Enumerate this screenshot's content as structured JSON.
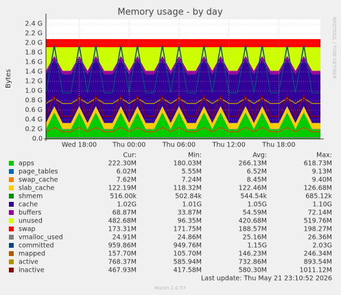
{
  "chart_data": {
    "type": "stacked_area",
    "title": "Memory usage - by day",
    "y_label": "Bytes",
    "side_text": "RRDTOOL / TOBI OETIKER",
    "footer": "Last update: Thu May 21 23:10:52 2026",
    "version": "Munin 2.0.57",
    "grid": true,
    "ylim": [
      0,
      2.5
    ],
    "yticks": [
      {
        "value": 0,
        "label": "0.0"
      },
      {
        "value": 0.2,
        "label": "0.2 G"
      },
      {
        "value": 0.4,
        "label": "0.4 G"
      },
      {
        "value": 0.6,
        "label": "0.6 G"
      },
      {
        "value": 0.8,
        "label": "0.8 G"
      },
      {
        "value": 1.0,
        "label": "1.0 G"
      },
      {
        "value": 1.2,
        "label": "1.2 G"
      },
      {
        "value": 1.4,
        "label": "1.4 G"
      },
      {
        "value": 1.6,
        "label": "1.6 G"
      },
      {
        "value": 1.8,
        "label": "1.8 G"
      },
      {
        "value": 2.0,
        "label": "2.0 G"
      },
      {
        "value": 2.2,
        "label": "2.2 G"
      },
      {
        "value": 2.4,
        "label": "2.4 G"
      }
    ],
    "categories": [
      null,
      null,
      null,
      null,
      "Wed 18:00",
      null,
      null,
      null,
      null,
      null,
      "Thu 00:00",
      null,
      null,
      null,
      null,
      null,
      "Thu 06:00",
      null,
      null,
      null,
      null,
      null,
      "Thu 12:00",
      null,
      null,
      null,
      null,
      null,
      "Thu 18:00",
      null,
      null,
      null,
      null,
      null
    ],
    "legend_headers": [
      "Cur:",
      "Min:",
      "Avg:",
      "Max:"
    ],
    "series": [
      {
        "name": "apps",
        "color": "#00cc00",
        "stack": true,
        "stats": [
          "222.30M",
          "180.03M",
          "266.13M",
          "618.73M"
        ],
        "values": [
          0.2,
          0.55,
          0.2,
          0.2,
          0.55,
          0.2,
          0.55,
          0.2,
          0.2,
          0.55,
          0.2,
          0.55,
          0.2,
          0.2,
          0.55,
          0.2,
          0.55,
          0.2,
          0.2,
          0.55,
          0.2,
          0.55,
          0.2,
          0.2,
          0.55,
          0.2,
          0.55,
          0.2,
          0.2,
          0.55,
          0.2,
          0.55,
          0.2,
          0.2
        ]
      },
      {
        "name": "page_tables",
        "color": "#0066b3",
        "stack": true,
        "stats": [
          "6.02M",
          "5.55M",
          "6.52M",
          "9.13M"
        ],
        "values": [
          0.006,
          0.006,
          0.006,
          0.006,
          0.006,
          0.006,
          0.006,
          0.006,
          0.006,
          0.006,
          0.006,
          0.006,
          0.006,
          0.006,
          0.006,
          0.006,
          0.006,
          0.006,
          0.006,
          0.006,
          0.006,
          0.006,
          0.006,
          0.006,
          0.006,
          0.006,
          0.006,
          0.006,
          0.006,
          0.006,
          0.006,
          0.006,
          0.006,
          0.006
        ]
      },
      {
        "name": "swap_cache",
        "color": "#ff8000",
        "stack": true,
        "stats": [
          "7.62M",
          "7.24M",
          "8.45M",
          "9.40M"
        ],
        "values": [
          0.007,
          0.007,
          0.007,
          0.007,
          0.007,
          0.007,
          0.007,
          0.007,
          0.007,
          0.007,
          0.007,
          0.007,
          0.007,
          0.007,
          0.007,
          0.007,
          0.007,
          0.007,
          0.007,
          0.007,
          0.007,
          0.007,
          0.007,
          0.007,
          0.007,
          0.007,
          0.007,
          0.007,
          0.007,
          0.007,
          0.007,
          0.007,
          0.007,
          0.007
        ]
      },
      {
        "name": "slab_cache",
        "color": "#ffcc00",
        "stack": true,
        "stats": [
          "122.19M",
          "118.32M",
          "122.46M",
          "126.68M"
        ],
        "values": [
          0.12,
          0.12,
          0.12,
          0.12,
          0.12,
          0.12,
          0.12,
          0.12,
          0.12,
          0.12,
          0.12,
          0.12,
          0.12,
          0.12,
          0.12,
          0.12,
          0.12,
          0.12,
          0.12,
          0.12,
          0.12,
          0.12,
          0.12,
          0.12,
          0.12,
          0.12,
          0.12,
          0.12,
          0.12,
          0.12,
          0.12,
          0.12,
          0.12,
          0.12
        ]
      },
      {
        "name": "shmem",
        "color": "#008f00",
        "stack": true,
        "stats": [
          "516.00k",
          "502.84k",
          "544.54k",
          "685.12k"
        ],
        "values": [
          0.0005,
          0.0005,
          0.0005,
          0.0005,
          0.0005,
          0.0005,
          0.0005,
          0.0005,
          0.0005,
          0.0005,
          0.0005,
          0.0005,
          0.0005,
          0.0005,
          0.0005,
          0.0005,
          0.0005,
          0.0005,
          0.0005,
          0.0005,
          0.0005,
          0.0005,
          0.0005,
          0.0005,
          0.0005,
          0.0005,
          0.0005,
          0.0005,
          0.0005,
          0.0005,
          0.0005,
          0.0005,
          0.0005,
          0.0005
        ]
      },
      {
        "name": "cache",
        "color": "#330099",
        "stack": true,
        "stats": [
          "1.02G",
          "1.01G",
          "1.05G",
          "1.10G"
        ],
        "values": [
          1.02,
          0.98,
          1.02,
          1.02,
          0.98,
          1.02,
          0.98,
          1.02,
          1.02,
          0.98,
          1.02,
          0.98,
          1.02,
          1.02,
          0.98,
          1.02,
          0.98,
          1.02,
          1.02,
          0.98,
          1.02,
          0.98,
          1.02,
          1.02,
          0.98,
          1.02,
          0.98,
          1.02,
          1.02,
          0.98,
          1.02,
          0.98,
          1.02,
          1.02
        ]
      },
      {
        "name": "buffers",
        "color": "#990099",
        "stack": true,
        "stats": [
          "68.87M",
          "33.87M",
          "54.59M",
          "72.14M"
        ],
        "values": [
          0.07,
          0.07,
          0.07,
          0.07,
          0.07,
          0.07,
          0.07,
          0.07,
          0.07,
          0.07,
          0.07,
          0.07,
          0.07,
          0.07,
          0.07,
          0.07,
          0.07,
          0.07,
          0.07,
          0.07,
          0.07,
          0.07,
          0.07,
          0.07,
          0.07,
          0.07,
          0.07,
          0.07,
          0.07,
          0.07,
          0.07,
          0.07,
          0.07,
          0.07
        ]
      },
      {
        "name": "unused",
        "color": "#ccff00",
        "stack": true,
        "stats": [
          "482.68M",
          "96.35M",
          "420.68M",
          "519.76M"
        ],
        "values": [
          0.49,
          0.18,
          0.49,
          0.49,
          0.18,
          0.49,
          0.18,
          0.49,
          0.49,
          0.18,
          0.49,
          0.18,
          0.49,
          0.49,
          0.18,
          0.49,
          0.18,
          0.49,
          0.49,
          0.18,
          0.49,
          0.18,
          0.49,
          0.49,
          0.18,
          0.49,
          0.18,
          0.49,
          0.49,
          0.18,
          0.49,
          0.18,
          0.49,
          0.49
        ]
      },
      {
        "name": "swap",
        "color": "#ff0000",
        "stack": true,
        "stats": [
          "173.31M",
          "171.75M",
          "188.57M",
          "198.27M"
        ],
        "values": [
          0.17,
          0.17,
          0.17,
          0.17,
          0.17,
          0.17,
          0.17,
          0.17,
          0.17,
          0.17,
          0.17,
          0.17,
          0.17,
          0.17,
          0.17,
          0.17,
          0.17,
          0.17,
          0.17,
          0.17,
          0.17,
          0.17,
          0.17,
          0.17,
          0.17,
          0.17,
          0.17,
          0.17,
          0.17,
          0.17,
          0.17,
          0.17,
          0.17,
          0.17
        ]
      },
      {
        "name": "vmalloc_used",
        "color": "#808080",
        "stack": false,
        "stats": [
          "24.91M",
          "24.86M",
          "25.16M",
          "26.36M"
        ],
        "values": [
          0.025,
          0.025,
          0.025,
          0.025,
          0.025,
          0.025,
          0.025,
          0.025,
          0.025,
          0.025,
          0.025,
          0.025,
          0.025,
          0.025,
          0.025,
          0.025,
          0.025,
          0.025,
          0.025,
          0.025,
          0.025,
          0.025,
          0.025,
          0.025,
          0.025,
          0.025,
          0.025,
          0.025,
          0.025,
          0.025,
          0.025,
          0.025,
          0.025,
          0.025
        ]
      },
      {
        "name": "committed",
        "color": "#00487d",
        "stack": false,
        "stats": [
          "959.86M",
          "949.76M",
          "1.15G",
          "2.03G"
        ],
        "values": [
          0.96,
          1.95,
          0.96,
          0.96,
          1.95,
          0.96,
          1.95,
          0.96,
          0.96,
          1.95,
          0.96,
          1.95,
          0.96,
          0.96,
          1.95,
          0.96,
          1.95,
          0.96,
          0.96,
          1.95,
          0.96,
          1.95,
          0.96,
          0.96,
          1.95,
          0.96,
          1.95,
          0.96,
          0.96,
          1.95,
          0.96,
          1.95,
          0.96,
          0.96
        ]
      },
      {
        "name": "mapped",
        "color": "#b35a00",
        "stack": false,
        "stats": [
          "157.70M",
          "105.70M",
          "146.23M",
          "246.34M"
        ],
        "values": [
          0.15,
          0.24,
          0.15,
          0.15,
          0.24,
          0.15,
          0.24,
          0.15,
          0.15,
          0.24,
          0.15,
          0.24,
          0.15,
          0.15,
          0.24,
          0.15,
          0.24,
          0.15,
          0.15,
          0.24,
          0.15,
          0.24,
          0.15,
          0.15,
          0.24,
          0.15,
          0.24,
          0.15,
          0.15,
          0.24,
          0.15,
          0.24,
          0.15,
          0.15
        ]
      },
      {
        "name": "active",
        "color": "#b38f00",
        "stack": false,
        "stats": [
          "768.37M",
          "585.94M",
          "732.86M",
          "893.54M"
        ],
        "values": [
          0.74,
          0.85,
          0.74,
          0.74,
          0.85,
          0.74,
          0.85,
          0.74,
          0.74,
          0.85,
          0.74,
          0.85,
          0.74,
          0.74,
          0.85,
          0.74,
          0.85,
          0.74,
          0.74,
          0.85,
          0.74,
          0.85,
          0.74,
          0.74,
          0.85,
          0.74,
          0.85,
          0.74,
          0.74,
          0.85,
          0.74,
          0.85,
          0.74,
          0.74
        ]
      },
      {
        "name": "inactive",
        "color": "#8f0000",
        "stack": false,
        "stats": [
          "467.93M",
          "417.58M",
          "580.30M",
          "1011.12M"
        ],
        "values": [
          0.47,
          0.9,
          0.47,
          0.47,
          0.9,
          0.47,
          0.9,
          0.47,
          0.47,
          0.9,
          0.47,
          0.9,
          0.47,
          0.47,
          0.9,
          0.47,
          0.9,
          0.47,
          0.47,
          0.9,
          0.47,
          0.9,
          0.47,
          0.47,
          0.9,
          0.47,
          0.9,
          0.47,
          0.47,
          0.9,
          0.47,
          0.9,
          0.47,
          0.47
        ]
      }
    ]
  }
}
